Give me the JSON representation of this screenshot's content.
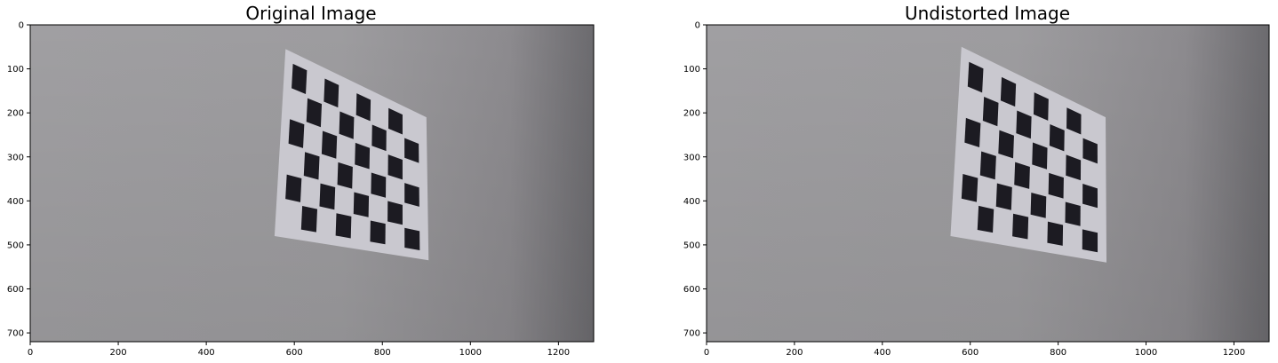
{
  "chart_data": [
    {
      "type": "image",
      "title": "Original Image",
      "xlim": [
        0,
        1280
      ],
      "ylim": [
        720,
        0
      ],
      "xticks": [
        0,
        200,
        400,
        600,
        800,
        1000,
        1200
      ],
      "yticks": [
        0,
        100,
        200,
        300,
        400,
        500,
        600,
        700
      ],
      "grid": false,
      "board_corners": [
        [
          580,
          55
        ],
        [
          900,
          210
        ],
        [
          905,
          535
        ],
        [
          555,
          480
        ]
      ]
    },
    {
      "type": "image",
      "title": "Undistorted Image",
      "xlim": [
        0,
        1280
      ],
      "ylim": [
        720,
        0
      ],
      "xticks": [
        0,
        200,
        400,
        600,
        800,
        1000,
        1200
      ],
      "yticks": [
        0,
        100,
        200,
        300,
        400,
        500,
        600,
        700
      ],
      "grid": false,
      "board_corners": [
        [
          580,
          50
        ],
        [
          908,
          210
        ],
        [
          910,
          540
        ],
        [
          555,
          480
        ]
      ]
    }
  ],
  "colors": {
    "wall_light": "#a7a6a9",
    "wall_mid": "#9c9b9e",
    "wall_dark": "#737275",
    "board_light": "#c9c8cf",
    "board_dark": "#1c1b22",
    "axis": "#000000"
  }
}
